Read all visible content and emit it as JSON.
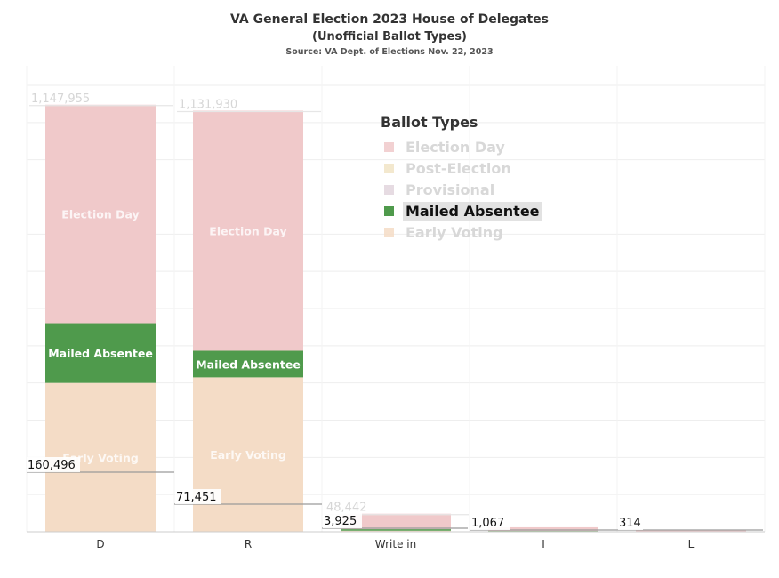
{
  "title": "VA General Election 2023 House of Delegates",
  "subtitle": "(Unofficial Ballot Types)",
  "source": "Source: VA Dept. of Elections Nov. 22, 2023",
  "legend": {
    "title": "Ballot Types",
    "items": [
      {
        "label": "Election Day",
        "color": "#f0c9ca",
        "state": "faded"
      },
      {
        "label": "Post-Election",
        "color": "#f1e4c6",
        "state": "faded"
      },
      {
        "label": "Provisional",
        "color": "#e2d5dd",
        "state": "faded"
      },
      {
        "label": "Mailed Absentee",
        "color": "#4f9a4c",
        "state": "active"
      },
      {
        "label": "Early Voting",
        "color": "#f4dcc6",
        "state": "faded"
      }
    ]
  },
  "chart_data": {
    "type": "bar",
    "stacked": true,
    "categories": [
      "D",
      "R",
      "Write in",
      "I",
      "L"
    ],
    "ylim": [
      0,
      1200000
    ],
    "grid": true,
    "legend_position": "top-right",
    "series": [
      {
        "name": "Early Voting",
        "color": "#f4dcc6",
        "values": [
          400000,
          415000,
          3000,
          1000,
          300
        ]
      },
      {
        "name": "Mailed Absentee",
        "color": "#4f9a4c",
        "values": [
          160496,
          71451,
          3925,
          1067,
          314
        ]
      },
      {
        "name": "Election Day",
        "color": "#f0c9ca",
        "values": [
          587459,
          645479,
          41517,
          10000,
          3000
        ]
      }
    ],
    "totals": [
      "1,147,955",
      "1,131,930",
      "48,442",
      "",
      ""
    ],
    "segment_labels": {
      "Election Day": [
        "Election Day",
        "Election Day",
        "",
        "",
        ""
      ],
      "Mailed Absentee": [
        "Mailed Absentee",
        "Mailed Absentee",
        "",
        "",
        ""
      ],
      "Early Voting": [
        "Early Voting",
        "Early Voting",
        "",
        "",
        ""
      ]
    },
    "mailed_value_labels": [
      "160,496",
      "71,451",
      "3,925",
      "1,067",
      "314"
    ]
  }
}
